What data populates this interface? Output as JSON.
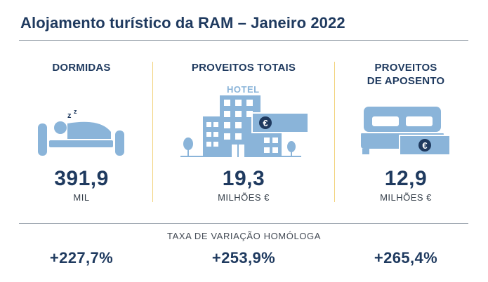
{
  "title": "Alojamento turístico da RAM – Janeiro 2022",
  "columns": [
    {
      "header": "DORMIDAS",
      "value": "391,9",
      "unit": "MIL",
      "icon": "sleeping-person-icon"
    },
    {
      "header": "PROVEITOS TOTAIS",
      "value": "19,3",
      "unit": "MILHÕES €",
      "icon": "hotel-building-icon",
      "icon_label": "HOTEL"
    },
    {
      "header_line1": "PROVEITOS",
      "header_line2": "DE APOSENTO",
      "value": "12,9",
      "unit": "MILHÕES €",
      "icon": "bed-icon"
    }
  ],
  "variation": {
    "label": "TAXA DE VARIAÇÃO HOMÓLOGA",
    "values": [
      "+227,7%",
      "+253,9%",
      "+265,4%"
    ]
  },
  "colors": {
    "dark_blue": "#1f3a5f",
    "light_blue": "#8ab4d9",
    "separator_yellow": "#f2d27a"
  }
}
